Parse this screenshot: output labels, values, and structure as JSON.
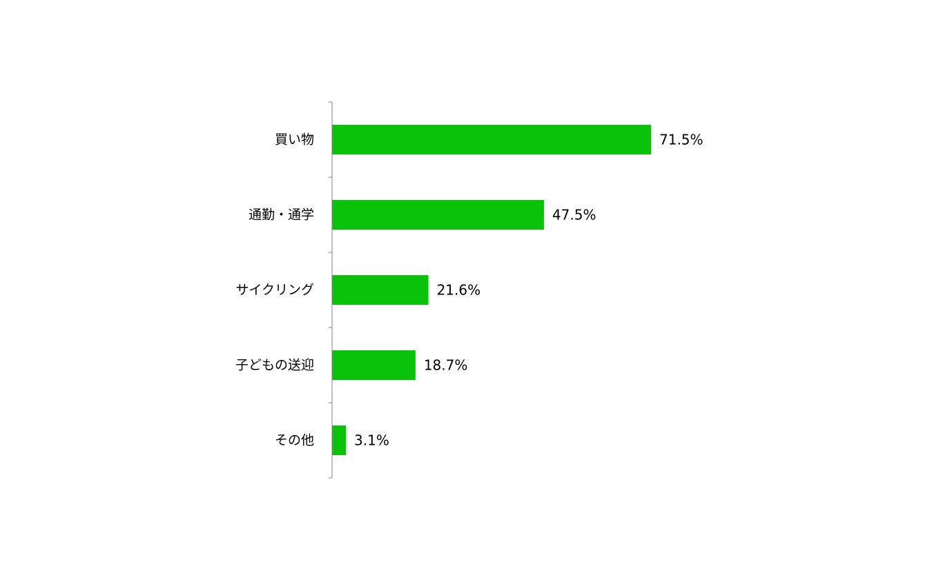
{
  "chart_data": {
    "type": "bar",
    "orientation": "horizontal",
    "categories": [
      "買い物",
      "通勤・通学",
      "サイクリング",
      "子どもの送迎",
      "その他"
    ],
    "values": [
      71.5,
      47.5,
      21.6,
      18.7,
      3.1
    ],
    "value_labels": [
      "71.5%",
      "47.5%",
      "21.6%",
      "18.7%",
      "3.1%"
    ],
    "unit": "%",
    "xlim": [
      0,
      100
    ],
    "grid": false,
    "legend": "none",
    "bar_color": "#0AC20A"
  }
}
